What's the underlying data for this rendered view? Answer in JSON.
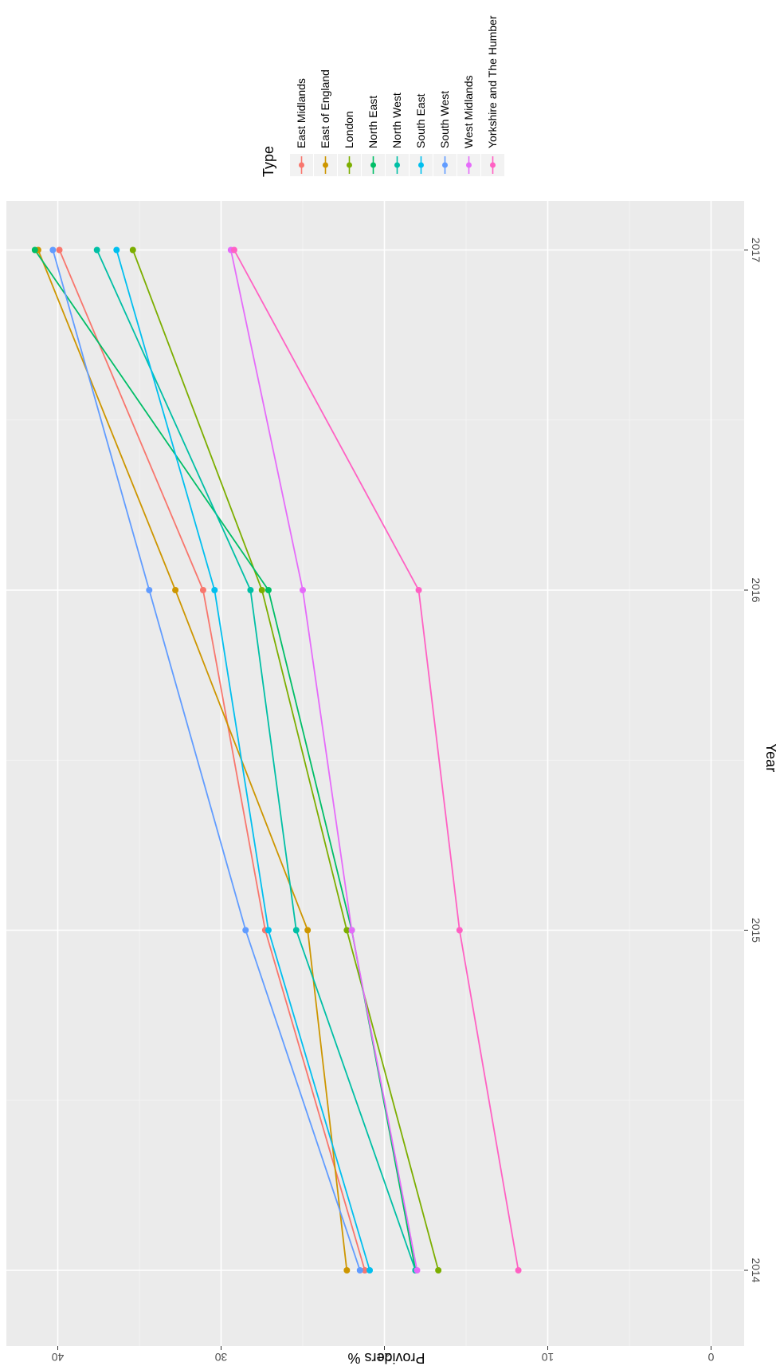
{
  "chart_data": {
    "type": "line",
    "xlabel": "Year",
    "ylabel": "Providers %",
    "x": [
      2014,
      2015,
      2016,
      2017
    ],
    "x_tick_labels": [
      "2014",
      "2015",
      "2016",
      "2017"
    ],
    "ylim": [
      0,
      42
    ],
    "y_ticks": [
      0,
      10,
      20,
      30,
      40
    ],
    "y_tick_labels": [
      "0",
      "10",
      "20",
      "30",
      "40"
    ],
    "grid": true,
    "legend": {
      "title": "Type",
      "position": "right"
    },
    "series": [
      {
        "name": "East Midlands",
        "color": "#F8766D",
        "values": [
          21.2,
          27.3,
          31.1,
          39.9
        ]
      },
      {
        "name": "East of England",
        "color": "#CD9600",
        "values": [
          22.3,
          24.7,
          32.8,
          41.2
        ]
      },
      {
        "name": "London",
        "color": "#7CAE00",
        "values": [
          16.7,
          22.3,
          27.5,
          35.4
        ]
      },
      {
        "name": "North East",
        "color": "#00BE67",
        "values": [
          18.1,
          22.0,
          27.1,
          41.4
        ]
      },
      {
        "name": "North West",
        "color": "#00BFA5",
        "values": [
          18.1,
          25.4,
          28.2,
          37.6
        ]
      },
      {
        "name": "South East",
        "color": "#00BFEF",
        "values": [
          20.9,
          27.1,
          30.4,
          36.4
        ]
      },
      {
        "name": "South West",
        "color": "#619CFF",
        "values": [
          21.5,
          28.5,
          34.4,
          40.3
        ]
      },
      {
        "name": "West Midlands",
        "color": "#E56BFA",
        "values": [
          18.0,
          22.0,
          25.0,
          29.4
        ]
      },
      {
        "name": "Yorkshire and The Humber",
        "color": "#FF61C3",
        "values": [
          11.8,
          15.4,
          17.9,
          29.2
        ]
      }
    ]
  }
}
